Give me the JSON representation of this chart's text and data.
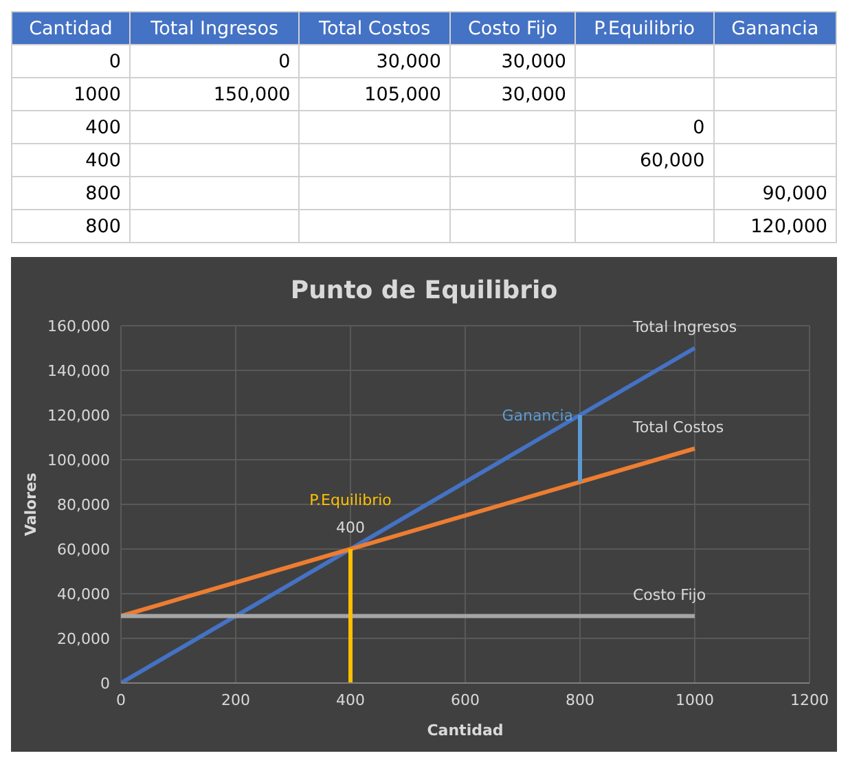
{
  "chart_data": [
    {
      "type": "other",
      "categories": [
        "Cantidad",
        "Total Ingresos",
        "Total Costos",
        "Costo Fijo",
        "P.Equilibrio",
        "Ganancia"
      ],
      "cell_labels": [
        [
          "0",
          "0",
          "30,000",
          "30,000",
          null,
          null
        ],
        [
          "1000",
          "150,000",
          "105,000",
          "30,000",
          null,
          null
        ],
        [
          "400",
          null,
          null,
          null,
          "0",
          null
        ],
        [
          "400",
          null,
          null,
          null,
          "60,000",
          null
        ],
        [
          "800",
          null,
          null,
          null,
          null,
          "90,000"
        ],
        [
          "800",
          null,
          null,
          null,
          null,
          "120,000"
        ]
      ]
    },
    {
      "type": "line",
      "title": "Punto de Equilibrio",
      "xlabel": "Cantidad",
      "ylabel": "Valores",
      "grid": true,
      "xlim": [
        0,
        1200
      ],
      "xticks": [
        0,
        200,
        400,
        600,
        800,
        1000,
        1200
      ],
      "ylim": [
        0,
        160000
      ],
      "yticks": [
        {
          "value": 0,
          "label": "0"
        },
        {
          "value": 20000,
          "label": "20,000"
        },
        {
          "value": 40000,
          "label": "40,000"
        },
        {
          "value": 60000,
          "label": "60,000"
        },
        {
          "value": 80000,
          "label": "80,000"
        },
        {
          "value": 100000,
          "label": "100,000"
        },
        {
          "value": 120000,
          "label": "120,000"
        },
        {
          "value": 140000,
          "label": "140,000"
        },
        {
          "value": 160000,
          "label": "160,000"
        }
      ],
      "annotations": [
        {
          "text": "400",
          "x": 400,
          "y": 60000
        }
      ],
      "series": [
        {
          "name": "Total Ingresos",
          "color": "#4472c4",
          "x": [
            0,
            1000
          ],
          "values": [
            0,
            150000
          ]
        },
        {
          "name": "Total Costos",
          "color": "#ed7d31",
          "x": [
            0,
            1000
          ],
          "values": [
            30000,
            105000
          ]
        },
        {
          "name": "Costo Fijo",
          "color": "#a5a5a5",
          "x": [
            0,
            1000
          ],
          "values": [
            30000,
            30000
          ]
        },
        {
          "name": "P.Equilibrio",
          "color": "#ffc000",
          "x": [
            400,
            400
          ],
          "values": [
            0,
            60000
          ]
        },
        {
          "name": "Ganancia",
          "color": "#5b9bd5",
          "x": [
            800,
            800
          ],
          "values": [
            90000,
            120000
          ]
        }
      ]
    }
  ]
}
